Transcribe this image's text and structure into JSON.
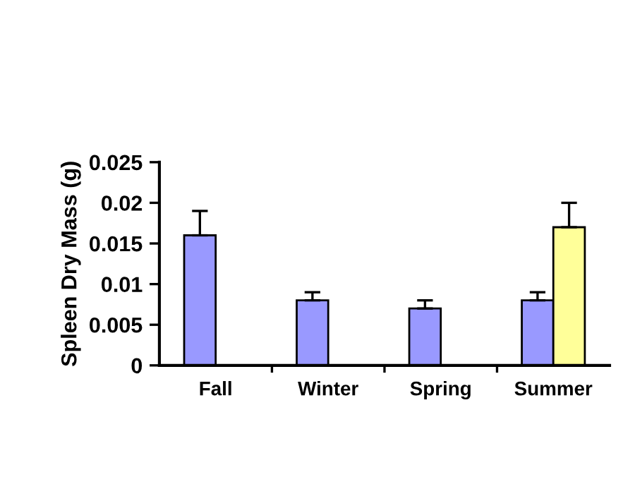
{
  "chart_data": {
    "type": "bar",
    "ylabel": "Spleen Dry Mass (g)",
    "categories": [
      "Fall",
      "Winter",
      "Spring",
      "Summer"
    ],
    "series": [
      {
        "color": "#9999ff",
        "values": [
          0.016,
          0.008,
          0.007,
          0.008
        ],
        "errors": [
          [
            0.016,
            0.019
          ],
          [
            0.008,
            0.009
          ],
          [
            0.007,
            0.008
          ],
          [
            0.008,
            0.009
          ]
        ]
      },
      {
        "color": "#ffff99",
        "values": [
          null,
          null,
          null,
          0.017
        ],
        "errors": [
          null,
          null,
          null,
          [
            0.017,
            0.02
          ]
        ]
      }
    ],
    "ylim": [
      0,
      0.025
    ],
    "yticks": [
      {
        "value": 0,
        "label": "0"
      },
      0.005,
      0.01,
      0.015,
      0.02,
      0.025
    ],
    "grid": false,
    "legend": false
  }
}
